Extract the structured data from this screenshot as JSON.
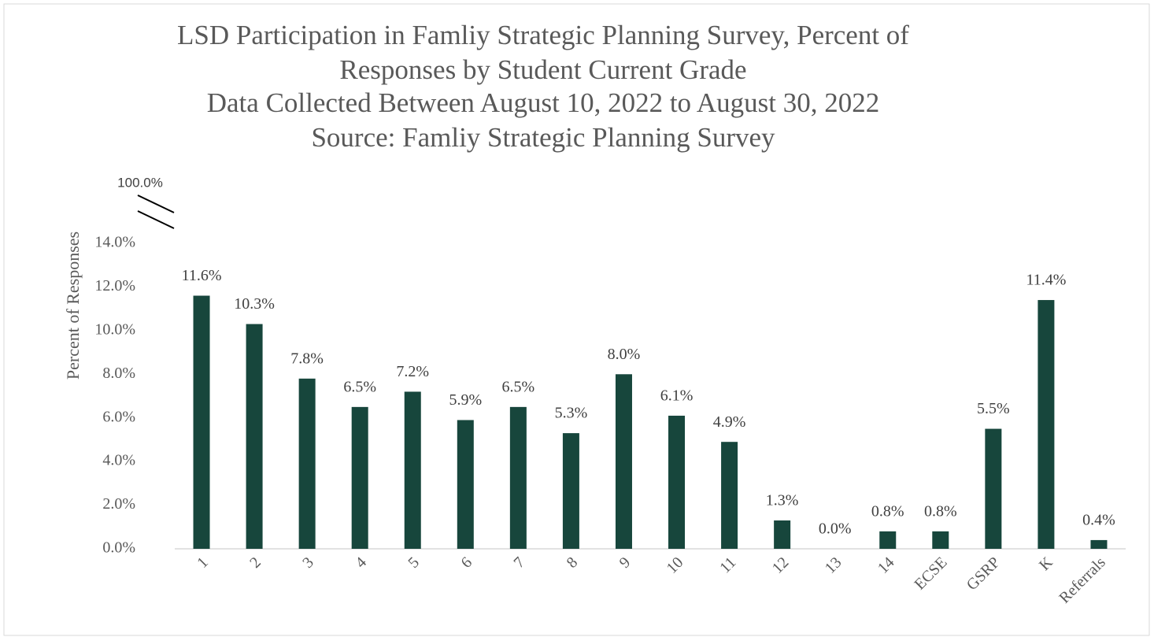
{
  "chart_data": {
    "type": "bar",
    "title": [
      "LSD Participation in Famliy Strategic Planning Survey, Percent of",
      "Responses by Student Current Grade",
      "Data Collected Between August 10, 2022 to August 30, 2022",
      "Source: Famliy Strategic Planning Survey"
    ],
    "y_label": "Percent of Responses",
    "categories": [
      "1",
      "2",
      "3",
      "4",
      "5",
      "6",
      "7",
      "8",
      "9",
      "10",
      "11",
      "12",
      "13",
      "14",
      "ECSE",
      "GSRP",
      "K",
      "Referrals"
    ],
    "values": [
      11.6,
      10.3,
      7.8,
      6.5,
      7.2,
      5.9,
      6.5,
      5.3,
      8.0,
      6.1,
      4.9,
      1.3,
      0.0,
      0.8,
      0.8,
      5.5,
      11.4,
      0.4
    ],
    "value_labels": [
      "11.6%",
      "10.3%",
      "7.8%",
      "6.5%",
      "7.2%",
      "5.9%",
      "6.5%",
      "5.3%",
      "8.0%",
      "6.1%",
      "4.9%",
      "1.3%",
      "0.0%",
      "0.8%",
      "0.8%",
      "5.5%",
      "11.4%",
      "0.4%"
    ],
    "color": "#17463c",
    "ylim": [
      0,
      14
    ],
    "yticks": [
      {
        "value": 0,
        "label": "0.0%"
      },
      {
        "value": 2,
        "label": "2.0%"
      },
      {
        "value": 4,
        "label": "4.0%"
      },
      {
        "value": 6,
        "label": "6.0%"
      },
      {
        "value": 8,
        "label": "8.0%"
      },
      {
        "value": 10,
        "label": "10.0%"
      },
      {
        "value": 12,
        "label": "12.0%"
      },
      {
        "value": 14,
        "label": "14.0%"
      }
    ],
    "axis_break": {
      "value": 100,
      "label": "100.0%"
    },
    "grid": false
  }
}
